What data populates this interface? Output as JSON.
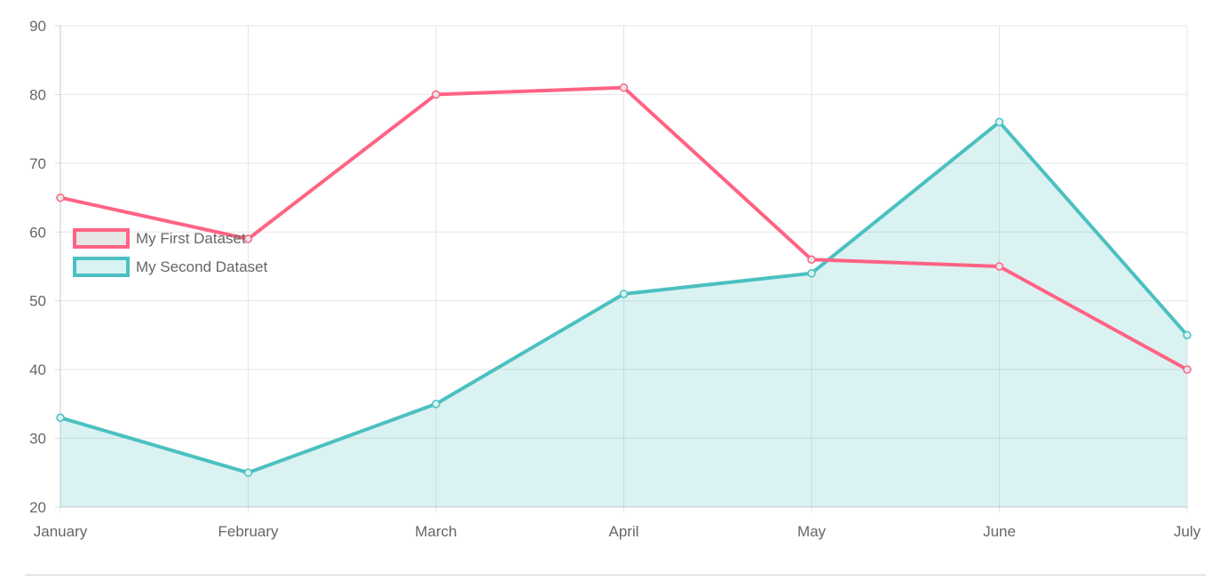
{
  "chart_data": {
    "type": "line",
    "categories": [
      "January",
      "February",
      "March",
      "April",
      "May",
      "June",
      "July"
    ],
    "series": [
      {
        "name": "My First Dataset",
        "values": [
          65,
          59,
          80,
          81,
          56,
          55,
          40
        ],
        "color": "#ff6384",
        "fill": false,
        "legend_box_fill": "#e6e6e6"
      },
      {
        "name": "My Second Dataset",
        "values": [
          33,
          25,
          35,
          51,
          54,
          76,
          45
        ],
        "color": "#4bc0c0",
        "fill": true,
        "fill_color": "rgba(75,192,192,0.2)",
        "legend_box_fill": "#d9f2f2"
      }
    ],
    "ylim": [
      20,
      90
    ],
    "yticks": [
      90,
      80,
      70,
      60,
      50,
      40,
      30,
      20
    ],
    "grid": true,
    "legend_position": "left",
    "title": "",
    "xlabel": "",
    "ylabel": ""
  }
}
